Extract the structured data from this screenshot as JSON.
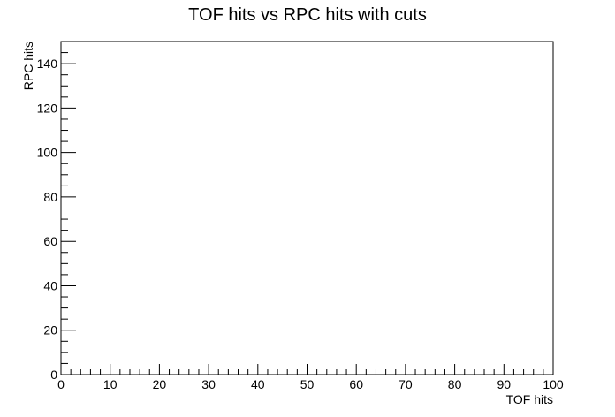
{
  "chart_data": {
    "type": "heatmap",
    "title": "TOF hits vs RPC hits with cuts",
    "xlabel": "TOF hits",
    "ylabel": "RPC hits",
    "xlim": [
      0,
      100
    ],
    "ylim": [
      0,
      150
    ],
    "x_ticks": [
      0,
      10,
      20,
      30,
      40,
      50,
      60,
      70,
      80,
      90,
      100
    ],
    "y_ticks": [
      0,
      20,
      40,
      60,
      80,
      100,
      120,
      140
    ],
    "x_minor_step": 2,
    "y_minor_step": 5,
    "values": [],
    "grid": false,
    "legend": "none"
  }
}
